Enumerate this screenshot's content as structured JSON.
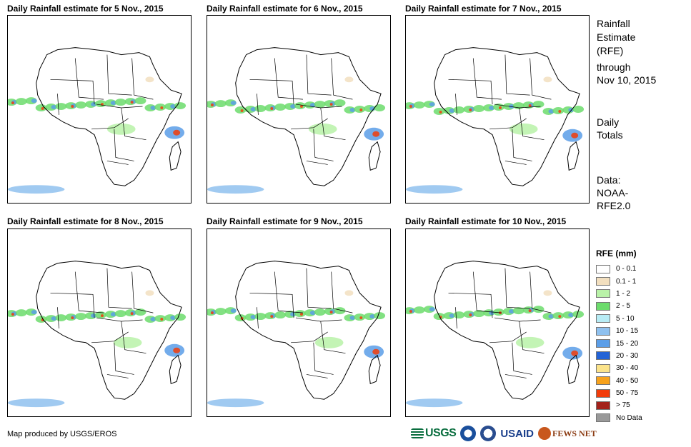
{
  "panels": [
    {
      "title": "Daily Rainfall estimate for 5 Nov., 2015"
    },
    {
      "title": "Daily Rainfall estimate for 6 Nov., 2015"
    },
    {
      "title": "Daily Rainfall estimate for 7 Nov., 2015"
    },
    {
      "title": "Daily Rainfall estimate for 8 Nov., 2015"
    },
    {
      "title": "Daily Rainfall estimate for 9 Nov., 2015"
    },
    {
      "title": "Daily Rainfall estimate for 10 Nov., 2015"
    }
  ],
  "sidebar": {
    "title_line1": "Rainfall",
    "title_line2": "Estimate",
    "title_line3": "(RFE)",
    "through": "through",
    "date": "Nov 10, 2015",
    "daily": "Daily",
    "totals": "Totals",
    "data_label": "Data:",
    "source1": "NOAA-",
    "source2": "RFE2.0"
  },
  "legend": {
    "title": "RFE (mm)",
    "items": [
      {
        "label": "0 - 0.1",
        "color": "#ffffff"
      },
      {
        "label": "0.1 - 1",
        "color": "#f2dfbf"
      },
      {
        "label": "1 - 2",
        "color": "#b9f2a8"
      },
      {
        "label": "2 - 5",
        "color": "#6cdc6c"
      },
      {
        "label": "5 - 10",
        "color": "#b7ecf5"
      },
      {
        "label": "10 - 15",
        "color": "#8fc1ef"
      },
      {
        "label": "15 - 20",
        "color": "#5b9ee8"
      },
      {
        "label": "20 - 30",
        "color": "#2463d6"
      },
      {
        "label": "30 - 40",
        "color": "#fbe38a"
      },
      {
        "label": "40 - 50",
        "color": "#f7a21c"
      },
      {
        "label": "50 - 75",
        "color": "#f23c0a"
      },
      {
        "label": "> 75",
        "color": "#a3221b"
      },
      {
        "label": "No Data",
        "color": "#999999"
      }
    ]
  },
  "footer": {
    "credit": "Map produced by USGS/EROS",
    "logos": [
      "USGS",
      "NOAA",
      "DHS",
      "USAID",
      "FEWS NET"
    ]
  }
}
